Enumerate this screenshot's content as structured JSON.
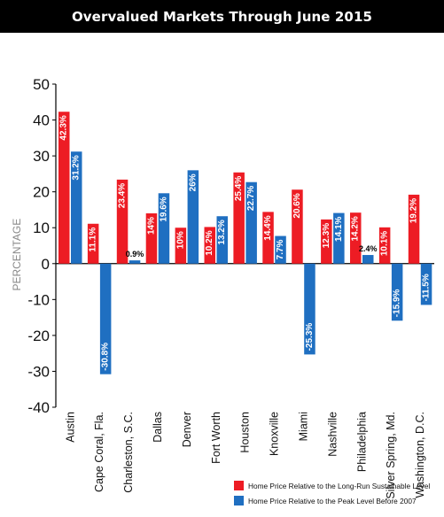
{
  "title": "Overvalued Markets Through June 2015",
  "chart_data": {
    "type": "bar",
    "ylabel": "PERCENTAGE",
    "ylim": [
      -40,
      50
    ],
    "yticks": [
      50,
      40,
      30,
      20,
      10,
      0,
      -10,
      -20,
      -30,
      -40
    ],
    "categories": [
      "Austin",
      "Cape Coral, Fla.",
      "Charleston, S.C.",
      "Dallas",
      "Denver",
      "Fort Worth",
      "Houston",
      "Knoxville",
      "Miami",
      "Nashville",
      "Philadelphia",
      "Silver Spring, Md.",
      "Washington, D.C."
    ],
    "series": [
      {
        "name": "Home Price Relative to the Long-Run Sustainable Level",
        "color": "#ed1c24",
        "values": [
          42.3,
          11.1,
          23.4,
          14,
          10,
          10.2,
          25.4,
          14.4,
          20.6,
          12.3,
          14.2,
          10.1,
          19.2
        ],
        "labels": [
          "42.3%",
          "11.1%",
          "23.4%",
          "14%",
          "10%",
          "10.2%",
          "25.4%",
          "14.4%",
          "20.6%",
          "12.3%",
          "14.2%",
          "10.1%",
          "19.2%"
        ]
      },
      {
        "name": "Home Price Relative to the Peak Level Before 2007",
        "color": "#1f6fc1",
        "values": [
          31.2,
          -30.8,
          0.9,
          19.6,
          26,
          13.2,
          22.7,
          7.7,
          -25.3,
          14.1,
          2.4,
          -15.9,
          -11.5
        ],
        "labels": [
          "31.2%",
          "-30.8%",
          "0.9%",
          "19.6%",
          "26%",
          "13.2%",
          "22.7%",
          "7.7%",
          "-25.3%",
          "14.1%",
          "2.4%",
          "-15.9%",
          "-11.5%"
        ]
      }
    ],
    "grid": false,
    "legend": "bottom-right"
  }
}
